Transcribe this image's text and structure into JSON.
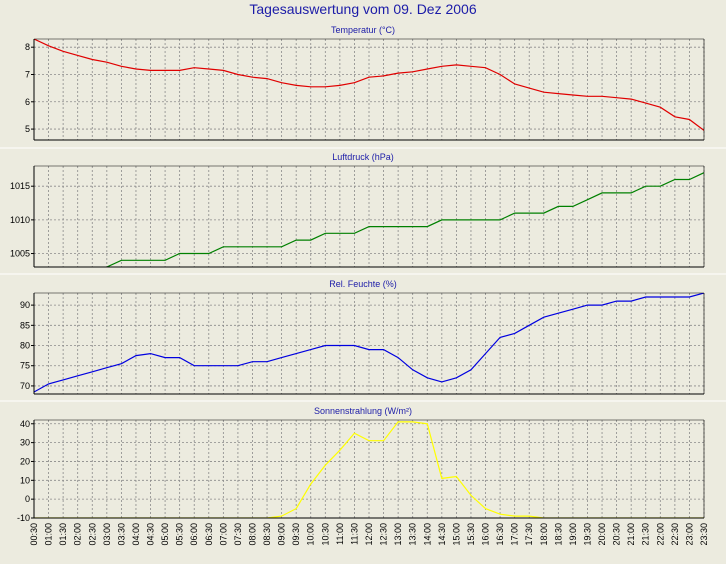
{
  "title": "Tagesauswertung vom 09. Dez 2006",
  "chart_data": [
    {
      "type": "line",
      "title": "Temperatur (°C)",
      "ylim": [
        4.6,
        8.3
      ],
      "yticks": [
        5,
        6,
        7,
        8
      ],
      "color": "#e00000",
      "series": [
        {
          "x": [
            0,
            1,
            2,
            3,
            4,
            5,
            6,
            7,
            8,
            9,
            10,
            11,
            12,
            13,
            14,
            15,
            16,
            17,
            18,
            19,
            20,
            21,
            22,
            23,
            24,
            25,
            26,
            27,
            28,
            29,
            30,
            31,
            32,
            33,
            34,
            35,
            36,
            37,
            38,
            39,
            40,
            41,
            42,
            43,
            44,
            45,
            46
          ],
          "values": [
            8.3,
            8.05,
            7.85,
            7.7,
            7.55,
            7.45,
            7.3,
            7.2,
            7.15,
            7.15,
            7.15,
            7.25,
            7.2,
            7.15,
            7.0,
            6.9,
            6.85,
            6.7,
            6.6,
            6.55,
            6.55,
            6.6,
            6.7,
            6.9,
            6.95,
            7.05,
            7.1,
            7.2,
            7.3,
            7.35,
            7.3,
            7.25,
            7.0,
            6.65,
            6.5,
            6.35,
            6.3,
            6.25,
            6.2,
            6.2,
            6.15,
            6.1,
            5.95,
            5.8,
            5.45,
            5.35,
            4.95
          ]
        }
      ]
    },
    {
      "type": "line",
      "title": "Luftdruck (hPa)",
      "ylim": [
        1003,
        1018
      ],
      "yticks": [
        1005,
        1010,
        1015
      ],
      "color": "#008000",
      "series": [
        {
          "x": [
            0,
            1,
            2,
            3,
            4,
            5,
            6,
            7,
            8,
            9,
            10,
            11,
            12,
            13,
            14,
            15,
            16,
            17,
            18,
            19,
            20,
            21,
            22,
            23,
            24,
            25,
            26,
            27,
            28,
            29,
            30,
            31,
            32,
            33,
            34,
            35,
            36,
            37,
            38,
            39,
            40,
            41,
            42,
            43,
            44,
            45,
            46
          ],
          "values": [
            1002,
            1002,
            1002,
            1002,
            1002,
            1003,
            1004,
            1004,
            1004,
            1004,
            1005,
            1005,
            1005,
            1006,
            1006,
            1006,
            1006,
            1006,
            1007,
            1007,
            1008,
            1008,
            1008,
            1009,
            1009,
            1009,
            1009,
            1009,
            1010,
            1010,
            1010,
            1010,
            1010,
            1011,
            1011,
            1011,
            1012,
            1012,
            1013,
            1014,
            1014,
            1014,
            1015,
            1015,
            1016,
            1016,
            1017
          ]
        }
      ]
    },
    {
      "type": "line",
      "title": "Rel. Feuchte (%)",
      "ylim": [
        68,
        93
      ],
      "yticks": [
        70,
        75,
        80,
        85,
        90
      ],
      "color": "#0000e0",
      "series": [
        {
          "x": [
            0,
            1,
            2,
            3,
            4,
            5,
            6,
            7,
            8,
            9,
            10,
            11,
            12,
            13,
            14,
            15,
            16,
            17,
            18,
            19,
            20,
            21,
            22,
            23,
            24,
            25,
            26,
            27,
            28,
            29,
            30,
            31,
            32,
            33,
            34,
            35,
            36,
            37,
            38,
            39,
            40,
            41,
            42,
            43,
            44,
            45,
            46
          ],
          "values": [
            68.5,
            70.5,
            71.5,
            72.5,
            73.5,
            74.5,
            75.5,
            77.5,
            78,
            77,
            77,
            75,
            75,
            75,
            75,
            76,
            76,
            77,
            78,
            79,
            80,
            80,
            80,
            79,
            79,
            77,
            74,
            72,
            71,
            72,
            74,
            78,
            82,
            83,
            85,
            87,
            88,
            89,
            90,
            90,
            91,
            91,
            92,
            92,
            92,
            92,
            93
          ]
        }
      ]
    },
    {
      "type": "line",
      "title": "Sonnenstrahlung (W/m²)",
      "ylim": [
        -10,
        42
      ],
      "yticks": [
        -10,
        0,
        10,
        20,
        30,
        40
      ],
      "color": "#ffff00",
      "series": [
        {
          "x": [
            0,
            1,
            2,
            3,
            4,
            5,
            6,
            7,
            8,
            9,
            10,
            11,
            12,
            13,
            14,
            15,
            16,
            17,
            18,
            19,
            20,
            21,
            22,
            23,
            24,
            25,
            26,
            27,
            28,
            29,
            30,
            31,
            32,
            33,
            34,
            35,
            36,
            37,
            38,
            39,
            40,
            41,
            42,
            43,
            44,
            45,
            46
          ],
          "values": [
            -10,
            -10,
            -10,
            -10,
            -10,
            -10,
            -10,
            -10,
            -10,
            -10,
            -10,
            -10,
            -10,
            -10,
            -10,
            -10,
            -10,
            -9,
            -5,
            8,
            18,
            26,
            35,
            31,
            31,
            41,
            41,
            40,
            11,
            12,
            2,
            -5,
            -8,
            -9,
            -9,
            -10,
            -10,
            -10,
            -10,
            -10,
            -10,
            -10,
            -10,
            -10,
            -10,
            -10,
            -10
          ]
        }
      ]
    }
  ],
  "x_ticks": [
    "00:30",
    "01:00",
    "01:30",
    "02:00",
    "02:30",
    "03:00",
    "03:30",
    "04:00",
    "04:30",
    "05:00",
    "05:30",
    "06:00",
    "06:30",
    "07:00",
    "07:30",
    "08:00",
    "08:30",
    "09:00",
    "09:30",
    "10:00",
    "10:30",
    "11:00",
    "11:30",
    "12:00",
    "12:30",
    "13:00",
    "13:30",
    "14:00",
    "14:30",
    "15:00",
    "15:30",
    "16:00",
    "16:30",
    "17:00",
    "17:30",
    "18:00",
    "18:30",
    "19:00",
    "19:30",
    "20:00",
    "20:30",
    "21:00",
    "21:30",
    "22:00",
    "22:30",
    "23:00",
    "23:30"
  ]
}
